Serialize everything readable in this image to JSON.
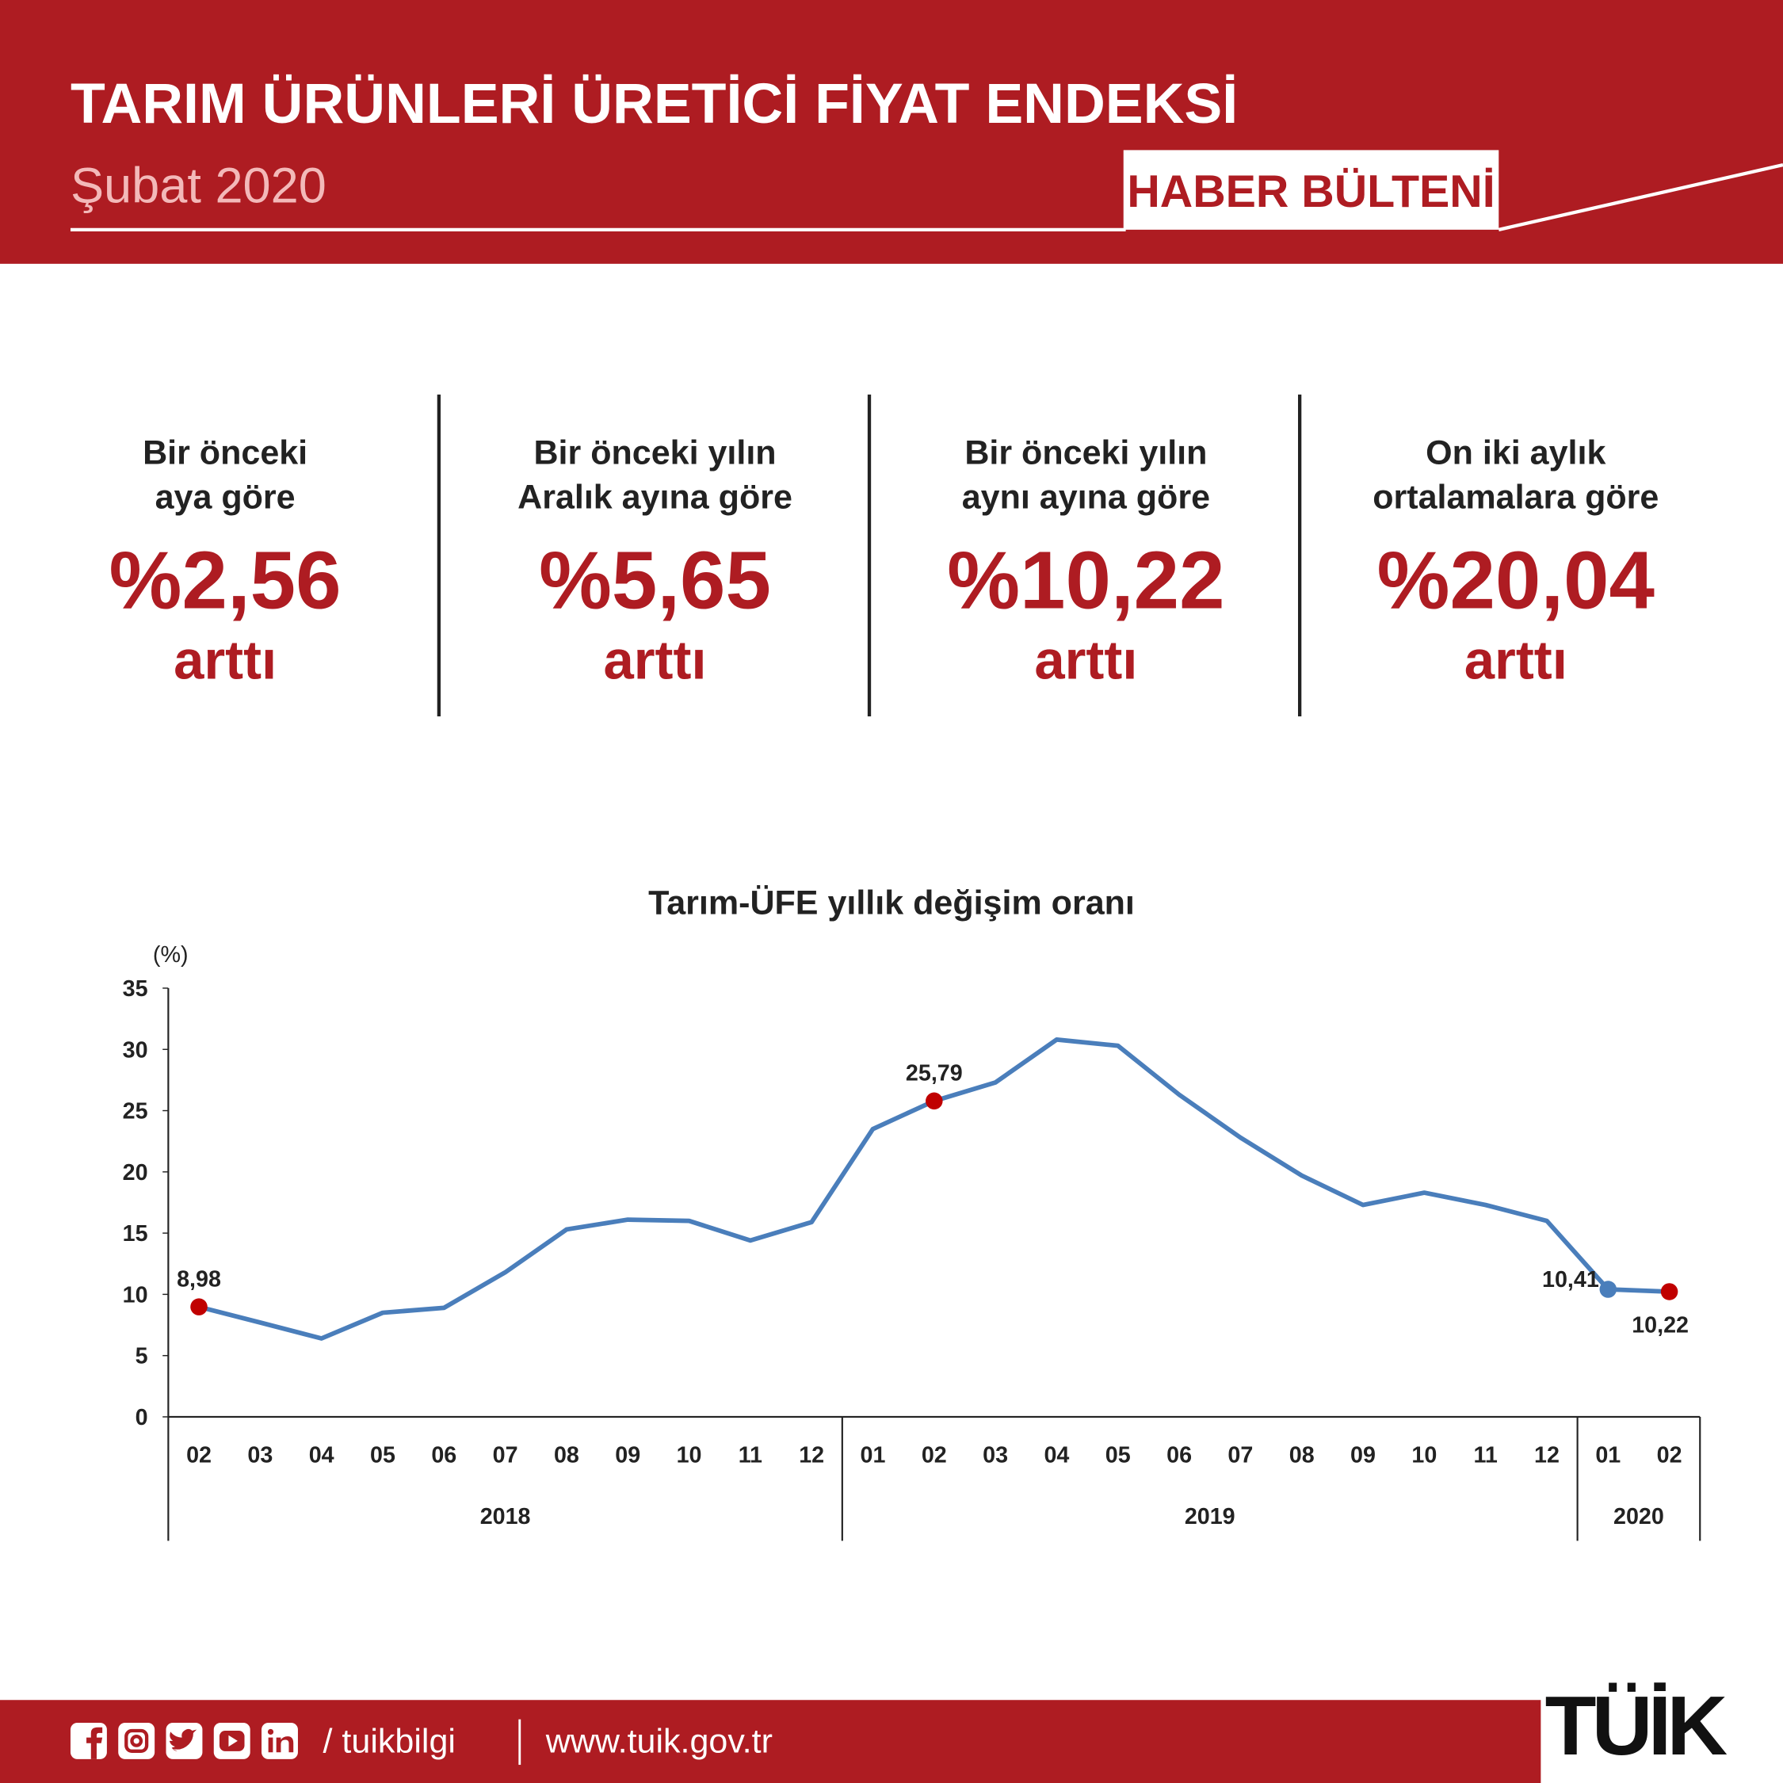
{
  "header": {
    "title": "TARIM ÜRÜNLERİ ÜRETİCİ FİYAT ENDEKSİ",
    "subtitle": "Şubat 2020",
    "badge": "HABER BÜLTENİ"
  },
  "stats": [
    {
      "label": [
        "Bir önceki",
        "aya göre"
      ],
      "value": "%2,56",
      "change": "arttı"
    },
    {
      "label": [
        "Bir önceki yılın",
        "Aralık ayına göre"
      ],
      "value": "%5,65",
      "change": "arttı"
    },
    {
      "label": [
        "Bir önceki yılın",
        "aynı ayına göre"
      ],
      "value": "%10,22",
      "change": "arttı"
    },
    {
      "label": [
        "On iki aylık",
        "ortalamalara göre"
      ],
      "value": "%20,04",
      "change": "arttı"
    }
  ],
  "chart_data": {
    "type": "line",
    "title": "Tarım-ÜFE yıllık değişim oranı",
    "y_label": "(%)",
    "groups": [
      {
        "label": "2018",
        "categories": [
          "02",
          "03",
          "04",
          "05",
          "06",
          "07",
          "08",
          "09",
          "10",
          "11",
          "12"
        ]
      },
      {
        "label": "2019",
        "categories": [
          "01",
          "02",
          "03",
          "04",
          "05",
          "06",
          "07",
          "08",
          "09",
          "10",
          "11",
          "12"
        ]
      },
      {
        "label": "2020",
        "categories": [
          "01",
          "02"
        ]
      }
    ],
    "values": [
      8.98,
      7.7,
      6.4,
      8.5,
      8.9,
      11.8,
      15.3,
      16.1,
      16.0,
      14.4,
      15.9,
      23.5,
      25.79,
      27.3,
      30.8,
      30.3,
      26.3,
      22.8,
      19.7,
      17.3,
      18.3,
      17.3,
      16.0,
      10.41,
      10.22
    ],
    "value_labels": [
      "8,98",
      null,
      null,
      null,
      null,
      null,
      null,
      null,
      null,
      null,
      null,
      null,
      "25,79",
      null,
      null,
      null,
      null,
      null,
      null,
      null,
      null,
      null,
      null,
      "10,41",
      "10,22"
    ],
    "marker_colors": [
      "#c00000",
      null,
      null,
      null,
      null,
      null,
      null,
      null,
      null,
      null,
      null,
      null,
      "#c00000",
      null,
      null,
      null,
      null,
      null,
      null,
      null,
      null,
      null,
      null,
      "#4a7ebb",
      "#c00000"
    ],
    "color": "#4a7ebb",
    "ylim": [
      0,
      35
    ],
    "yticks": [
      0,
      5,
      10,
      15,
      20,
      25,
      30,
      35
    ]
  },
  "footer": {
    "handle": "/ tuikbilgi",
    "url": "www.tuik.gov.tr",
    "logo": "TÜİK"
  }
}
